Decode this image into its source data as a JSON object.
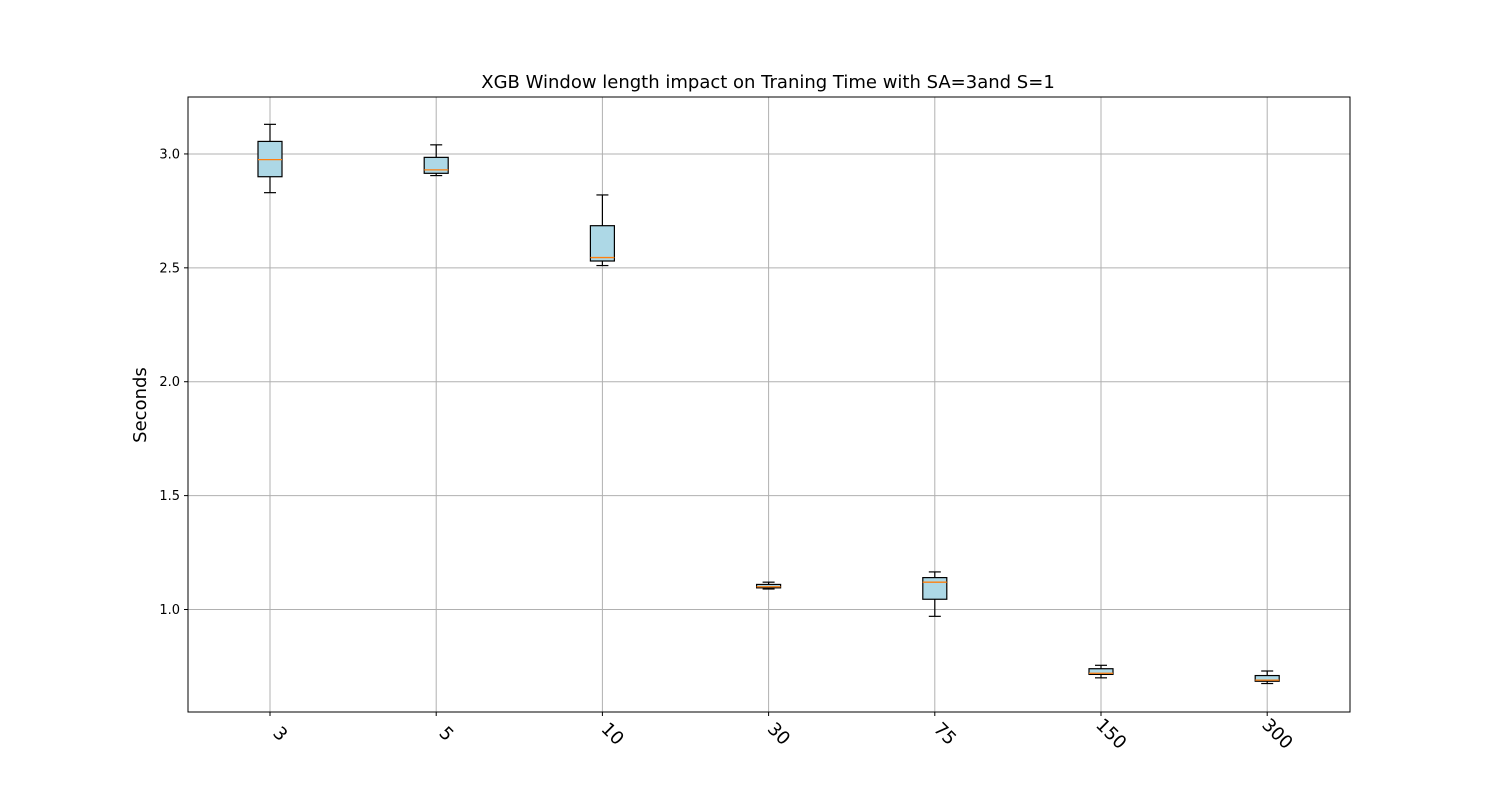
{
  "chart_data": {
    "type": "boxplot",
    "title": "XGB Window length impact on Traning Time with SA=3and S=1",
    "xlabel": "",
    "ylabel": "Seconds",
    "ylim": [
      0.55,
      3.25
    ],
    "yticks": [
      1.0,
      1.5,
      2.0,
      2.5,
      3.0
    ],
    "ytick_labels": [
      "1.0",
      "1.5",
      "2.0",
      "2.5",
      "3.0"
    ],
    "categories": [
      "3",
      "5",
      "10",
      "30",
      "75",
      "150",
      "300"
    ],
    "xtick_rotation": -45,
    "grid": true,
    "colors": {
      "box_fill": "#add8e6",
      "median": "#ff7f0e",
      "grid": "#b0b0b0",
      "stroke": "#000000"
    },
    "boxes": [
      {
        "category": "3",
        "whisker_low": 2.83,
        "q1": 2.9,
        "median": 2.975,
        "q3": 3.055,
        "whisker_high": 3.13
      },
      {
        "category": "5",
        "whisker_low": 2.905,
        "q1": 2.915,
        "median": 2.93,
        "q3": 2.985,
        "whisker_high": 3.04
      },
      {
        "category": "10",
        "whisker_low": 2.51,
        "q1": 2.53,
        "median": 2.545,
        "q3": 2.685,
        "whisker_high": 2.82
      },
      {
        "category": "30",
        "whisker_low": 1.09,
        "q1": 1.095,
        "median": 1.1,
        "q3": 1.11,
        "whisker_high": 1.12
      },
      {
        "category": "75",
        "whisker_low": 0.97,
        "q1": 1.045,
        "median": 1.12,
        "q3": 1.14,
        "whisker_high": 1.165
      },
      {
        "category": "150",
        "whisker_low": 0.7,
        "q1": 0.715,
        "median": 0.72,
        "q3": 0.74,
        "whisker_high": 0.755
      },
      {
        "category": "300",
        "whisker_low": 0.675,
        "q1": 0.685,
        "median": 0.69,
        "q3": 0.71,
        "whisker_high": 0.73
      }
    ]
  }
}
